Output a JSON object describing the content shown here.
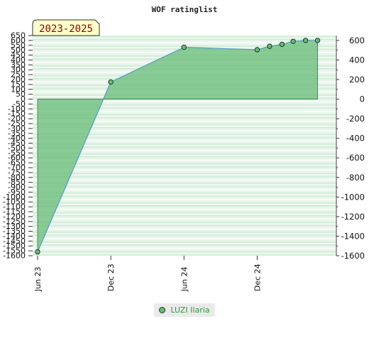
{
  "chart_data": {
    "type": "area",
    "title": "WOF ratinglist",
    "badge": "2023-2025",
    "x_ticks": [
      "Jun 23",
      "Dec 23",
      "Jun 24",
      "Dec 24"
    ],
    "y_left_ticks": [
      650,
      600,
      550,
      500,
      450,
      400,
      350,
      300,
      250,
      200,
      150,
      100,
      50,
      0,
      -50,
      -100,
      -150,
      -200,
      -250,
      -300,
      -350,
      -400,
      -450,
      -500,
      -550,
      -600,
      -650,
      -700,
      -750,
      -800,
      -850,
      -900,
      -950,
      -1000,
      -1050,
      -1100,
      -1150,
      -1200,
      -1250,
      -1300,
      -1350,
      -1400,
      -1450,
      -1500,
      -1550,
      -1600
    ],
    "y_right_ticks": [
      600,
      400,
      200,
      0,
      -200,
      -400,
      -600,
      -800,
      -1000,
      -1200,
      -1400,
      -1600
    ],
    "ylim": [
      -1600,
      650
    ],
    "series": [
      {
        "name": "LUZI Ilaria",
        "color": "#66bb77",
        "points": [
          {
            "x": "2023-06",
            "y": -1560
          },
          {
            "x": "2023-12",
            "y": 175
          },
          {
            "x": "2024-06",
            "y": 530
          },
          {
            "x": "2024-12",
            "y": 505
          },
          {
            "x": "2025-01",
            "y": 540
          },
          {
            "x": "2025-02",
            "y": 560
          },
          {
            "x": "2025-03",
            "y": 590
          },
          {
            "x": "2025-04",
            "y": 600
          },
          {
            "x": "2025-05",
            "y": 600
          }
        ]
      }
    ],
    "legend_position": "bottom-center",
    "grid": true
  }
}
